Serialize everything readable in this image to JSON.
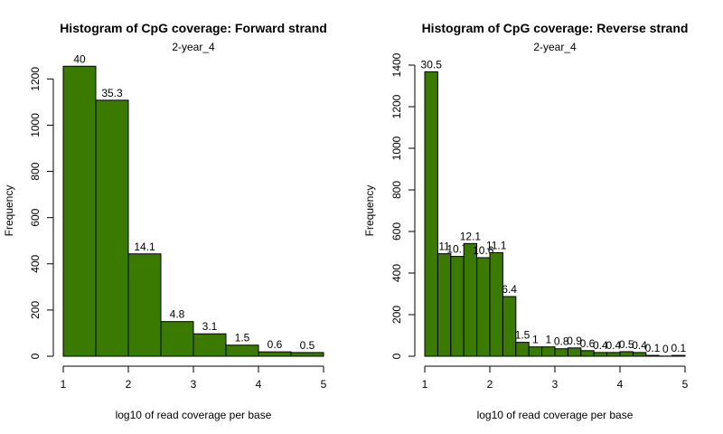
{
  "colors": {
    "bar_fill": "#3a7a00",
    "bar_stroke": "#000000"
  },
  "chart_data": [
    {
      "type": "bar",
      "title": "Histogram of CpG coverage: Forward strand",
      "subtitle": "2-year_4",
      "xlabel": "log10 of read coverage per base",
      "ylabel": "Frequency",
      "xlim": [
        1,
        5
      ],
      "ylim": [
        0,
        1260
      ],
      "x_ticks": [
        "1",
        "2",
        "3",
        "4",
        "5"
      ],
      "y_ticks": [
        "0",
        "200",
        "400",
        "600",
        "800",
        "1000",
        "1200"
      ],
      "bins": [
        {
          "start": 1.0,
          "end": 1.5,
          "value": 1255,
          "label": "40"
        },
        {
          "start": 1.5,
          "end": 2.0,
          "value": 1108,
          "label": "35.3"
        },
        {
          "start": 2.0,
          "end": 2.5,
          "value": 443,
          "label": "14.1"
        },
        {
          "start": 2.5,
          "end": 3.0,
          "value": 150,
          "label": "4.8"
        },
        {
          "start": 3.0,
          "end": 3.5,
          "value": 97,
          "label": "3.1"
        },
        {
          "start": 3.5,
          "end": 4.0,
          "value": 48,
          "label": "1.5"
        },
        {
          "start": 4.0,
          "end": 4.5,
          "value": 19,
          "label": "0.6"
        },
        {
          "start": 4.5,
          "end": 5.0,
          "value": 16,
          "label": "0.5"
        }
      ]
    },
    {
      "type": "bar",
      "title": "Histogram of CpG coverage: Reverse strand",
      "subtitle": "2-year_4",
      "xlabel": "log10 of read coverage per base",
      "ylabel": "Frequency",
      "xlim": [
        1,
        5
      ],
      "ylim": [
        0,
        1400
      ],
      "x_ticks": [
        "1",
        "2",
        "3",
        "4",
        "5"
      ],
      "y_ticks": [
        "0",
        "200",
        "400",
        "600",
        "800",
        "1000",
        "1200",
        "1400"
      ],
      "bins": [
        {
          "start": 1.0,
          "end": 1.2,
          "value": 1368,
          "label": "30.5"
        },
        {
          "start": 1.2,
          "end": 1.4,
          "value": 493,
          "label": "11"
        },
        {
          "start": 1.4,
          "end": 1.6,
          "value": 480,
          "label": "10.7"
        },
        {
          "start": 1.6,
          "end": 1.8,
          "value": 542,
          "label": "12.1"
        },
        {
          "start": 1.8,
          "end": 2.0,
          "value": 474,
          "label": "10.6"
        },
        {
          "start": 2.0,
          "end": 2.2,
          "value": 498,
          "label": "11.1"
        },
        {
          "start": 2.2,
          "end": 2.4,
          "value": 287,
          "label": "6.4"
        },
        {
          "start": 2.4,
          "end": 2.6,
          "value": 67,
          "label": "1.5"
        },
        {
          "start": 2.6,
          "end": 2.8,
          "value": 45,
          "label": "1"
        },
        {
          "start": 2.8,
          "end": 3.0,
          "value": 45,
          "label": "1"
        },
        {
          "start": 3.0,
          "end": 3.2,
          "value": 36,
          "label": "0.8"
        },
        {
          "start": 3.2,
          "end": 3.4,
          "value": 40,
          "label": "0.9"
        },
        {
          "start": 3.4,
          "end": 3.6,
          "value": 27,
          "label": "0.6"
        },
        {
          "start": 3.6,
          "end": 3.8,
          "value": 18,
          "label": "0.4"
        },
        {
          "start": 3.8,
          "end": 4.0,
          "value": 18,
          "label": "0.4"
        },
        {
          "start": 4.0,
          "end": 4.2,
          "value": 22,
          "label": "0.5"
        },
        {
          "start": 4.2,
          "end": 4.4,
          "value": 18,
          "label": "0.4"
        },
        {
          "start": 4.4,
          "end": 4.6,
          "value": 4,
          "label": "0.1"
        },
        {
          "start": 4.6,
          "end": 4.8,
          "value": 1,
          "label": "0"
        },
        {
          "start": 4.8,
          "end": 5.0,
          "value": 4,
          "label": "0.1"
        }
      ]
    }
  ]
}
